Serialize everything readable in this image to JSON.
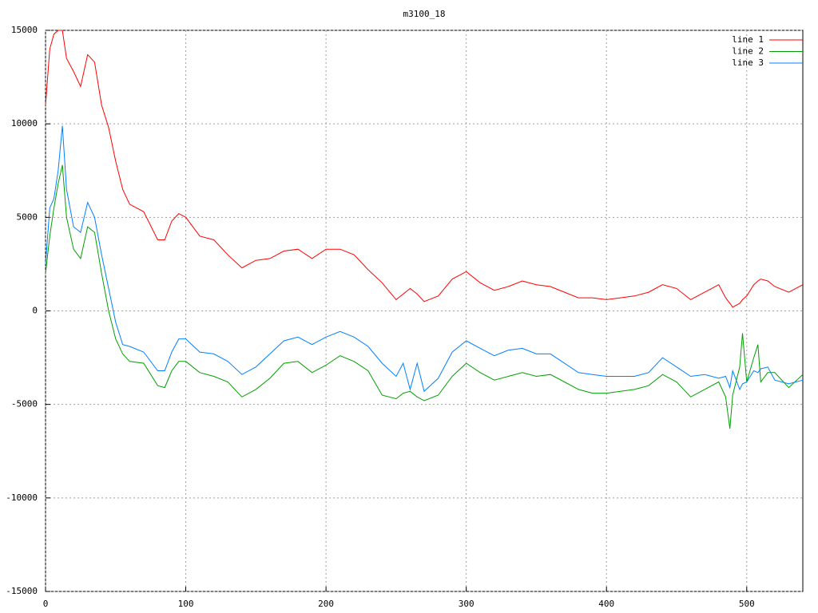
{
  "chart_data": {
    "type": "line",
    "title": "m3100_18",
    "x": [
      0,
      3,
      6,
      9,
      12,
      15,
      20,
      25,
      30,
      35,
      40,
      45,
      50,
      55,
      60,
      70,
      80,
      85,
      90,
      95,
      100,
      110,
      120,
      130,
      140,
      150,
      160,
      170,
      180,
      190,
      200,
      210,
      220,
      230,
      240,
      250,
      255,
      260,
      265,
      270,
      280,
      290,
      300,
      310,
      320,
      330,
      340,
      350,
      360,
      370,
      380,
      390,
      400,
      410,
      420,
      430,
      440,
      450,
      460,
      470,
      480,
      485,
      488,
      490,
      495,
      497,
      500,
      505,
      508,
      510,
      515,
      520,
      530,
      540
    ],
    "series": [
      {
        "name": "line 1",
        "color": "#ff0000",
        "values": [
          11000,
          14000,
          14800,
          15000,
          15000,
          13500,
          12800,
          12000,
          13700,
          13300,
          11000,
          9800,
          8000,
          6500,
          5700,
          5300,
          3800,
          3800,
          4800,
          5200,
          5000,
          4000,
          3800,
          3000,
          2300,
          2700,
          2800,
          3200,
          3300,
          2800,
          3300,
          3300,
          3000,
          2200,
          1500,
          600,
          900,
          1200,
          900,
          500,
          800,
          1700,
          2100,
          1500,
          1100,
          1300,
          1600,
          1400,
          1300,
          1000,
          700,
          700,
          600,
          700,
          800,
          1000,
          1400,
          1200,
          600,
          1000,
          1400,
          700,
          400,
          200,
          400,
          600,
          800,
          1400,
          1600,
          1700,
          1600,
          1300,
          1000,
          1400
        ]
      },
      {
        "name": "line 2",
        "color": "#00a000",
        "values": [
          2000,
          4000,
          5500,
          6800,
          7800,
          5000,
          3300,
          2800,
          4500,
          4200,
          2000,
          0,
          -1500,
          -2300,
          -2700,
          -2800,
          -4000,
          -4100,
          -3200,
          -2700,
          -2700,
          -3300,
          -3500,
          -3800,
          -4600,
          -4200,
          -3600,
          -2800,
          -2700,
          -3300,
          -2900,
          -2400,
          -2700,
          -3200,
          -4500,
          -4700,
          -4400,
          -4300,
          -4600,
          -4800,
          -4500,
          -3500,
          -2800,
          -3300,
          -3700,
          -3500,
          -3300,
          -3500,
          -3400,
          -3800,
          -4200,
          -4400,
          -4400,
          -4300,
          -4200,
          -4000,
          -3400,
          -3800,
          -4600,
          -4200,
          -3800,
          -4600,
          -6300,
          -4500,
          -3000,
          -1200,
          -3800,
          -2500,
          -1800,
          -3800,
          -3300,
          -3300,
          -4100,
          -3400
        ]
      },
      {
        "name": "line 3",
        "color": "#0080ff",
        "values": [
          2500,
          5500,
          6000,
          7500,
          9900,
          6500,
          4500,
          4200,
          5800,
          5000,
          3000,
          1200,
          -600,
          -1800,
          -1900,
          -2200,
          -3200,
          -3200,
          -2200,
          -1500,
          -1500,
          -2200,
          -2300,
          -2700,
          -3400,
          -3000,
          -2300,
          -1600,
          -1400,
          -1800,
          -1400,
          -1100,
          -1400,
          -1900,
          -2800,
          -3500,
          -2800,
          -4200,
          -2800,
          -4300,
          -3600,
          -2200,
          -1600,
          -2000,
          -2400,
          -2100,
          -2000,
          -2300,
          -2300,
          -2800,
          -3300,
          -3400,
          -3500,
          -3500,
          -3500,
          -3300,
          -2500,
          -3000,
          -3500,
          -3400,
          -3600,
          -3500,
          -4100,
          -3200,
          -4200,
          -3900,
          -3800,
          -3200,
          -3300,
          -3100,
          -3000,
          -3700,
          -3900,
          -3700
        ]
      }
    ],
    "xlim": [
      0,
      540
    ],
    "xticks": [
      0,
      100,
      200,
      300,
      400,
      500
    ],
    "ylim": [
      -15000,
      15000
    ],
    "yticks": [
      -15000,
      -10000,
      -5000,
      0,
      5000,
      10000,
      15000
    ],
    "grid": true,
    "legend": "top-right"
  }
}
